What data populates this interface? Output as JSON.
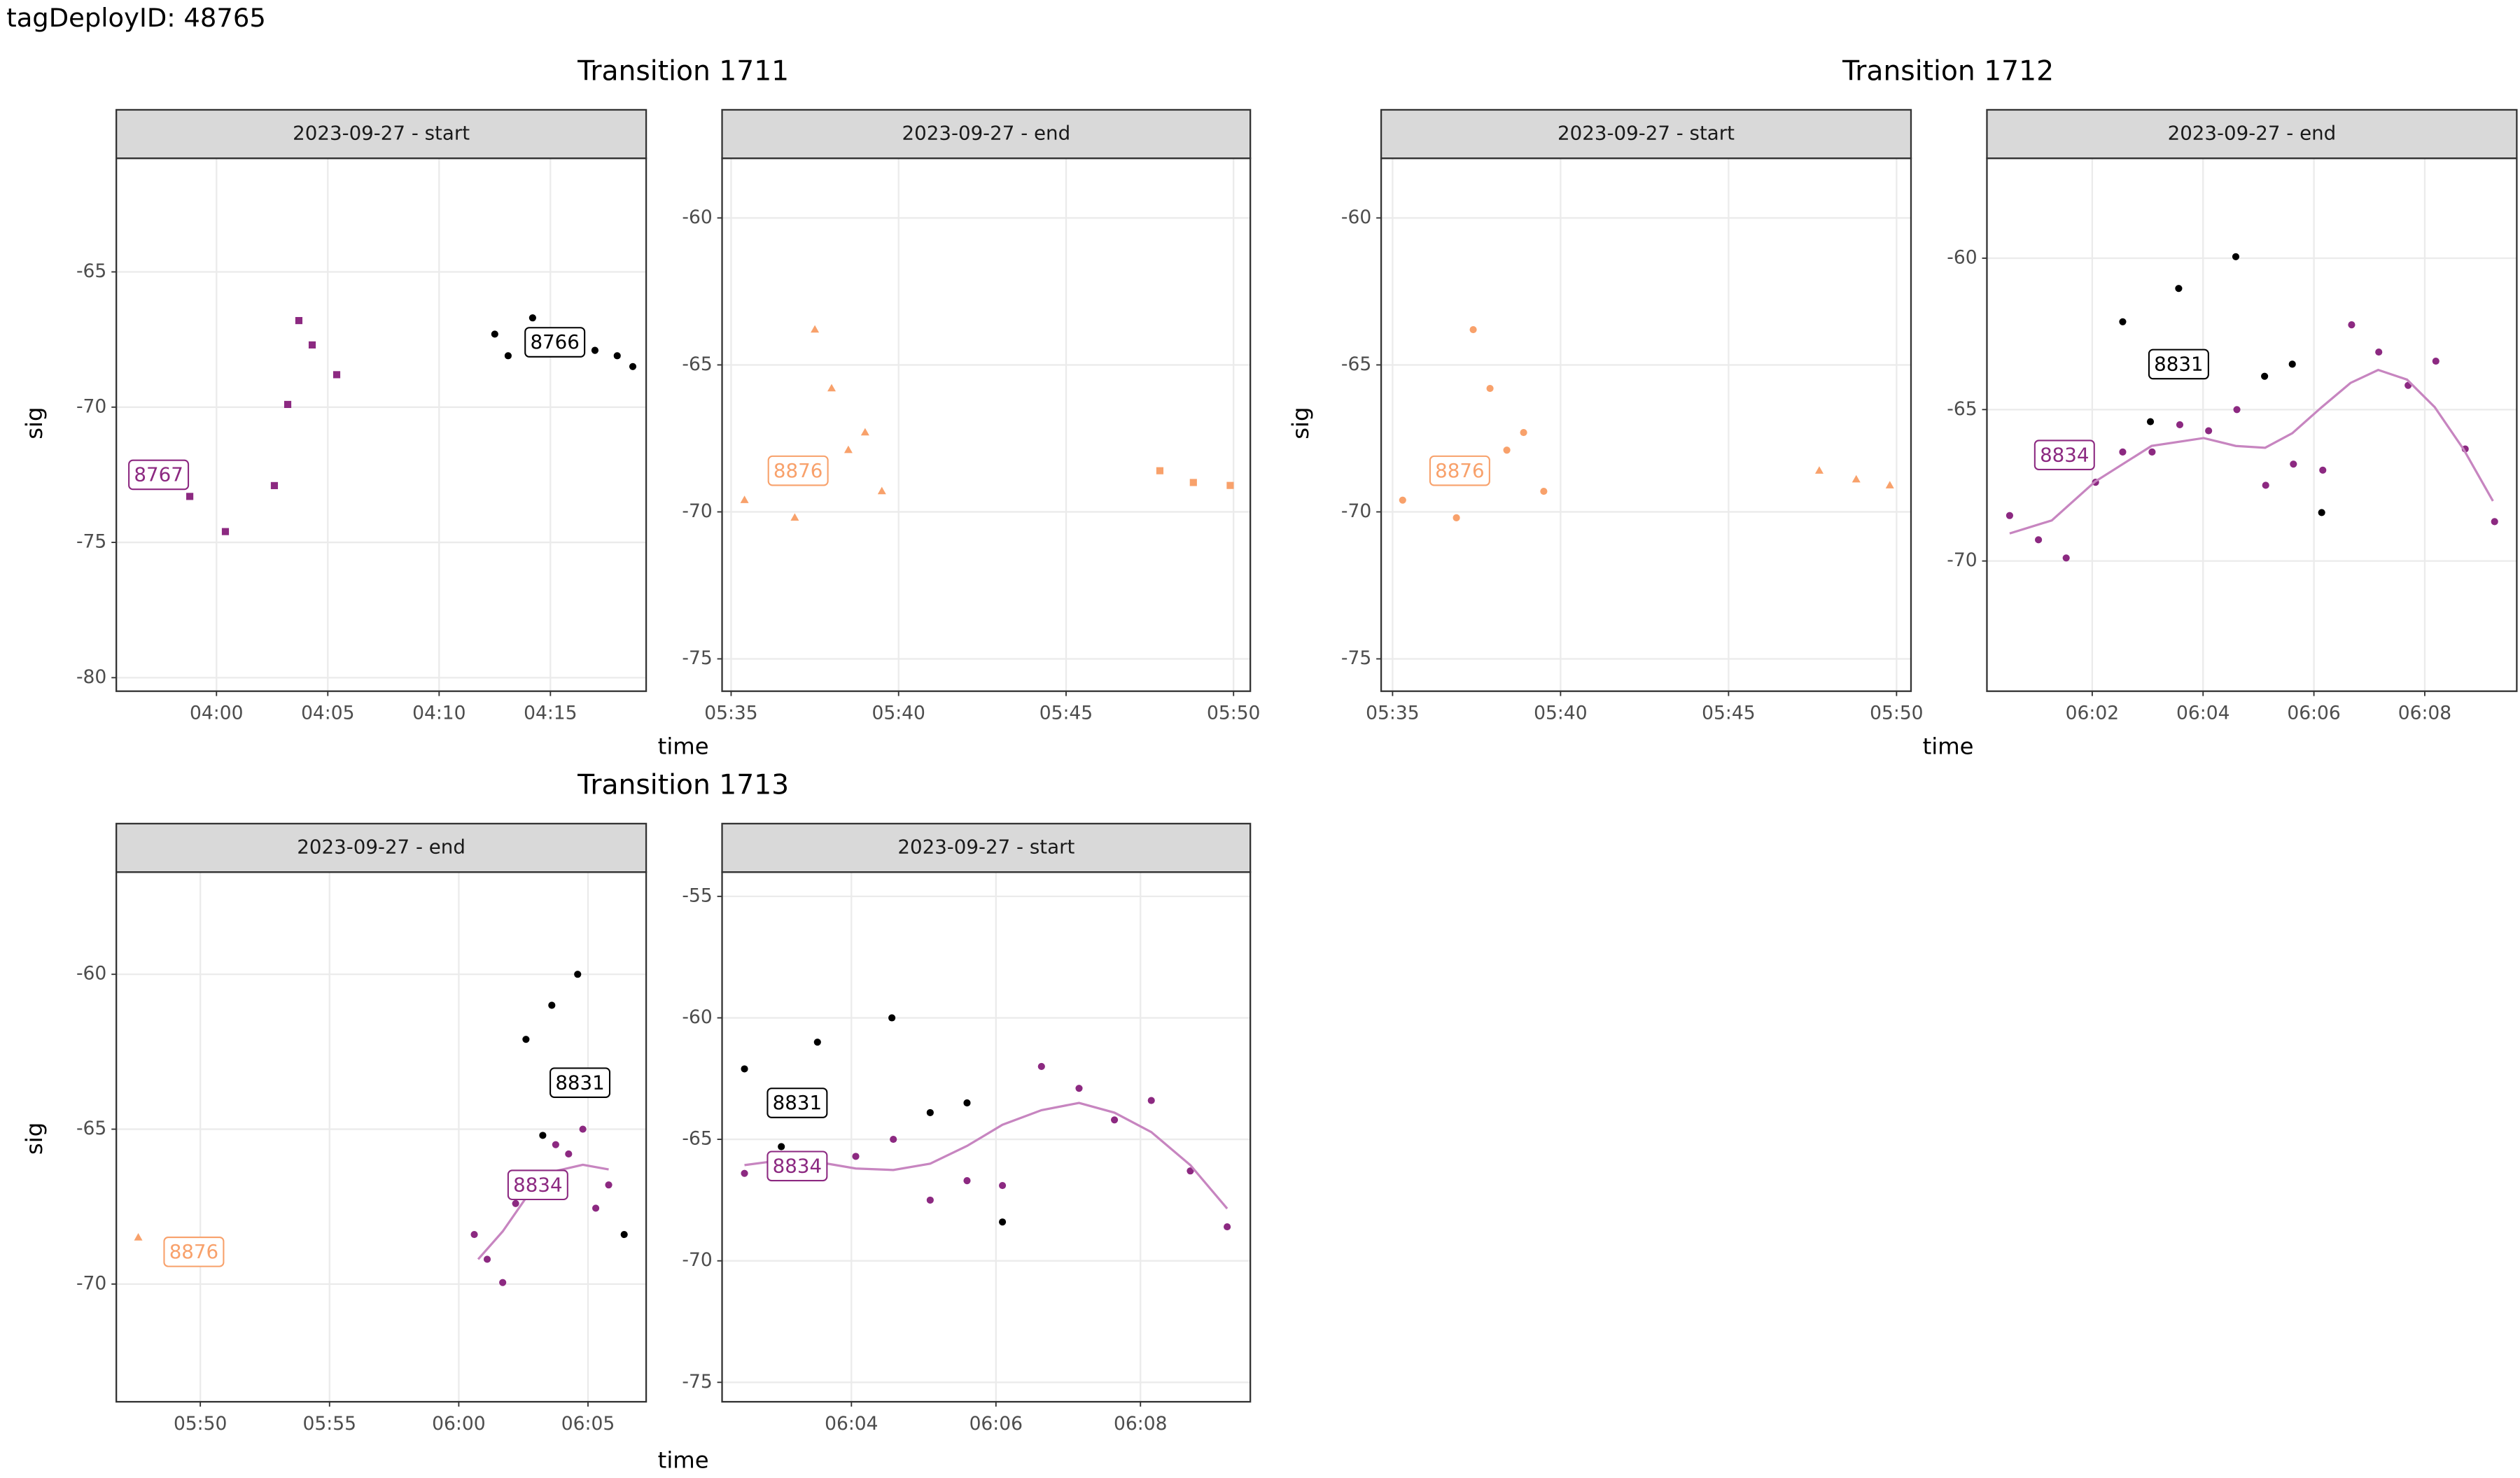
{
  "title": "tagDeployID: 48765",
  "transitions": [
    {
      "title": "Transition 1711",
      "x_label": "time",
      "y_label": "sig"
    },
    {
      "title": "Transition 1712",
      "x_label": "time",
      "y_label": "sig"
    },
    {
      "title": "Transition 1713",
      "x_label": "time",
      "y_label": "sig"
    }
  ],
  "chart_data": [
    {
      "type": "scatter",
      "title": "2023-09-27 - start",
      "grid": true,
      "xlim": [
        235.5,
        259.3
      ],
      "xticks": [
        {
          "value": 240,
          "label": "04:00"
        },
        {
          "value": 245,
          "label": "04:05"
        },
        {
          "value": 250,
          "label": "04:10"
        },
        {
          "value": 255,
          "label": "04:15"
        }
      ],
      "ylim": [
        -60.8,
        -80.5
      ],
      "yticks": [
        -65,
        -70,
        -75,
        -80
      ],
      "series": [
        {
          "color": "#8c2981",
          "shape": "circle",
          "x": [
            236.5,
            237.1
          ],
          "y": [
            -72.5,
            -72.8
          ]
        },
        {
          "color": "#8c2981",
          "shape": "square",
          "x": [
            238.8,
            240.4,
            242.6,
            243.2,
            243.7,
            244.3,
            245.4
          ],
          "y": [
            -73.3,
            -74.6,
            -72.9,
            -69.9,
            -66.8,
            -67.7,
            -68.8
          ]
        },
        {
          "color": "#000000",
          "shape": "circle",
          "x": [
            252.5,
            253.1,
            254.2,
            257.0,
            258.0,
            258.7
          ],
          "y": [
            -67.3,
            -68.1,
            -66.7,
            -67.9,
            -68.1,
            -68.5
          ]
        }
      ],
      "annotations": [
        {
          "text": "8767",
          "x": 237.4,
          "y": -72.5,
          "color": "#8c2981"
        },
        {
          "text": "8766",
          "x": 255.2,
          "y": -67.6,
          "color": "#000000"
        }
      ]
    },
    {
      "type": "scatter",
      "title": "2023-09-27 - end",
      "grid": true,
      "xlim": [
        334.73,
        350.5
      ],
      "xticks": [
        {
          "value": 335,
          "label": "05:35"
        },
        {
          "value": 340,
          "label": "05:40"
        },
        {
          "value": 345,
          "label": "05:45"
        },
        {
          "value": 350,
          "label": "05:50"
        }
      ],
      "ylim": [
        -57.97,
        -76.1
      ],
      "yticks": [
        -60,
        -65,
        -70,
        -75
      ],
      "series": [
        {
          "color": "#f8a16b",
          "shape": "triangle",
          "x": [
            335.4,
            336.9,
            337.5,
            338.0,
            338.5,
            339.0,
            339.5
          ],
          "y": [
            -69.6,
            -70.2,
            -63.8,
            -65.8,
            -67.9,
            -67.3,
            -69.3
          ]
        },
        {
          "color": "#f8a16b",
          "shape": "square",
          "x": [
            347.8,
            348.8,
            349.9
          ],
          "y": [
            -68.6,
            -69.0,
            -69.1
          ]
        }
      ],
      "annotations": [
        {
          "text": "8876",
          "x": 337.0,
          "y": -68.6,
          "color": "#f8a16b"
        }
      ]
    },
    {
      "type": "scatter",
      "title": "2023-09-27 - start",
      "grid": true,
      "xlim": [
        334.66,
        350.43
      ],
      "xticks": [
        {
          "value": 335,
          "label": "05:35"
        },
        {
          "value": 340,
          "label": "05:40"
        },
        {
          "value": 345,
          "label": "05:45"
        },
        {
          "value": 350,
          "label": "05:50"
        }
      ],
      "ylim": [
        -57.97,
        -76.1
      ],
      "yticks": [
        -60,
        -65,
        -70,
        -75
      ],
      "series": [
        {
          "color": "#f8a16b",
          "shape": "circle",
          "x": [
            335.3,
            336.9,
            337.4,
            337.9,
            338.4,
            338.9,
            339.5
          ],
          "y": [
            -69.6,
            -70.2,
            -63.8,
            -65.8,
            -67.9,
            -67.3,
            -69.3
          ]
        },
        {
          "color": "#f8a16b",
          "shape": "triangle",
          "x": [
            347.7,
            348.8,
            349.8
          ],
          "y": [
            -68.6,
            -68.9,
            -69.1
          ]
        }
      ],
      "annotations": [
        {
          "text": "8876",
          "x": 337.0,
          "y": -68.6,
          "color": "#f8a16b"
        }
      ]
    },
    {
      "type": "scatter",
      "title": "2023-09-27 - end",
      "grid": true,
      "xlim": [
        360.1,
        369.66
      ],
      "xticks": [
        {
          "value": 362,
          "label": "06:02"
        },
        {
          "value": 364,
          "label": "06:04"
        },
        {
          "value": 366,
          "label": "06:06"
        },
        {
          "value": 368,
          "label": "06:08"
        }
      ],
      "ylim": [
        -56.7,
        -74.3
      ],
      "yticks": [
        -60,
        -65,
        -70
      ],
      "series": [
        {
          "color": "#000000",
          "shape": "circle",
          "x": [
            362.55,
            363.05,
            363.56,
            364.59,
            365.11,
            365.61,
            366.14
          ],
          "y": [
            -62.1,
            -65.4,
            -61.0,
            -59.95,
            -63.9,
            -63.5,
            -68.4
          ]
        },
        {
          "color": "#8c2981",
          "shape": "circle",
          "x": [
            360.51,
            361.03,
            361.53,
            362.06,
            362.55,
            363.08,
            363.58,
            364.1,
            364.61,
            365.13,
            365.63,
            366.16,
            366.68,
            367.17,
            367.7,
            368.2,
            368.73,
            369.26
          ],
          "y": [
            -68.5,
            -69.3,
            -69.9,
            -67.4,
            -66.4,
            -66.4,
            -65.5,
            -65.7,
            -65.0,
            -67.5,
            -66.8,
            -67.0,
            -62.2,
            -63.1,
            -64.2,
            -63.4,
            -66.3,
            -68.7
          ]
        },
        {
          "type": "line",
          "color": "#c785c0",
          "x": [
            360.51,
            361.27,
            362.05,
            363.07,
            364.01,
            364.59,
            365.12,
            365.61,
            366.14,
            366.66,
            367.16,
            367.68,
            368.18,
            368.7,
            369.23
          ],
          "y": [
            -69.09,
            -68.66,
            -67.38,
            -66.2,
            -65.94,
            -66.2,
            -66.26,
            -65.78,
            -64.92,
            -64.12,
            -63.69,
            -64.01,
            -64.92,
            -66.31,
            -68.02
          ]
        }
      ],
      "annotations": [
        {
          "text": "8831",
          "x": 363.56,
          "y": -63.5,
          "color": "#000000"
        },
        {
          "text": "8834",
          "x": 361.5,
          "y": -66.5,
          "color": "#8c2981"
        }
      ]
    },
    {
      "type": "scatter",
      "title": "2023-09-27 - end",
      "grid": true,
      "xlim": [
        346.75,
        367.25
      ],
      "xticks": [
        {
          "value": 350,
          "label": "05:50"
        },
        {
          "value": 355,
          "label": "05:55"
        },
        {
          "value": 360,
          "label": "06:00"
        },
        {
          "value": 365,
          "label": "06:05"
        }
      ],
      "ylim": [
        -56.7,
        -73.8
      ],
      "yticks": [
        -60,
        -65,
        -70
      ],
      "series": [
        {
          "color": "#f8a16b",
          "shape": "triangle",
          "x": [
            347.6
          ],
          "y": [
            -68.5
          ]
        },
        {
          "color": "#000000",
          "shape": "circle",
          "x": [
            362.6,
            363.6,
            364.6,
            363.25,
            366.4
          ],
          "y": [
            -62.1,
            -61.0,
            -60.0,
            -65.2,
            -68.4
          ]
        },
        {
          "color": "#8c2981",
          "shape": "circle",
          "x": [
            360.6,
            361.1,
            361.7,
            362.2,
            363.75,
            364.25,
            364.8,
            365.3,
            365.8
          ],
          "y": [
            -68.4,
            -69.2,
            -69.95,
            -67.4,
            -65.5,
            -65.8,
            -65.0,
            -67.55,
            -66.8
          ]
        },
        {
          "type": "line",
          "color": "#c785c0",
          "x": [
            360.75,
            361.7,
            362.7,
            363.75,
            364.8,
            365.8
          ],
          "y": [
            -69.2,
            -68.3,
            -67.1,
            -66.35,
            -66.15,
            -66.3
          ]
        }
      ],
      "annotations": [
        {
          "text": "8876",
          "x": 349.75,
          "y": -68.96,
          "color": "#f8a16b"
        },
        {
          "text": "8831",
          "x": 364.69,
          "y": -63.5,
          "color": "#000000"
        },
        {
          "text": "8834",
          "x": 363.06,
          "y": -66.8,
          "color": "#8c2981"
        }
      ]
    },
    {
      "type": "scatter",
      "title": "2023-09-27 - start",
      "grid": true,
      "xlim": [
        362.21,
        369.52
      ],
      "xticks": [
        {
          "value": 364,
          "label": "06:04"
        },
        {
          "value": 366,
          "label": "06:06"
        },
        {
          "value": 368,
          "label": "06:08"
        }
      ],
      "ylim": [
        -54.0,
        -75.8
      ],
      "yticks": [
        -55,
        -60,
        -65,
        -70,
        -75
      ],
      "series": [
        {
          "color": "#000000",
          "shape": "circle",
          "x": [
            362.52,
            363.03,
            363.53,
            364.56,
            365.09,
            365.6,
            366.09
          ],
          "y": [
            -62.1,
            -65.3,
            -61.0,
            -60.0,
            -63.9,
            -63.5,
            -68.4
          ]
        },
        {
          "color": "#8c2981",
          "shape": "circle",
          "x": [
            362.52,
            364.06,
            364.58,
            365.09,
            365.6,
            366.09,
            366.63,
            367.15,
            367.64,
            368.15,
            368.69,
            369.2
          ],
          "y": [
            -66.4,
            -65.7,
            -65.0,
            -67.5,
            -66.7,
            -66.9,
            -62.0,
            -62.9,
            -64.2,
            -63.4,
            -66.3,
            -68.6
          ]
        },
        {
          "type": "line",
          "color": "#c785c0",
          "x": [
            362.52,
            363.03,
            363.53,
            364.06,
            364.58,
            365.09,
            365.6,
            366.09,
            366.63,
            367.15,
            367.64,
            368.15,
            368.69,
            369.2
          ],
          "y": [
            -66.06,
            -65.86,
            -65.93,
            -66.2,
            -66.26,
            -66.0,
            -65.27,
            -64.4,
            -63.8,
            -63.5,
            -63.9,
            -64.7,
            -66.06,
            -67.85
          ]
        }
      ],
      "annotations": [
        {
          "text": "8831",
          "x": 363.25,
          "y": -63.5,
          "color": "#000000"
        },
        {
          "text": "8834",
          "x": 363.25,
          "y": -66.1,
          "color": "#8c2981"
        }
      ]
    }
  ]
}
